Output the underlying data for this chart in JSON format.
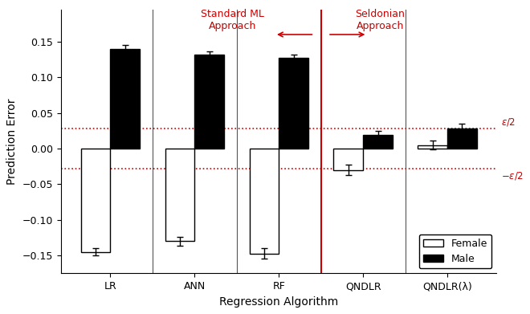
{
  "categories": [
    "LR",
    "ANN",
    "RF",
    "QNDLR",
    "QNDLR(λ)"
  ],
  "female_values": [
    -0.145,
    -0.13,
    -0.147,
    -0.03,
    0.005
  ],
  "male_values": [
    0.14,
    0.132,
    0.127,
    0.019,
    0.028
  ],
  "female_errors": [
    0.005,
    0.006,
    0.007,
    0.007,
    0.006
  ],
  "male_errors": [
    0.005,
    0.004,
    0.005,
    0.006,
    0.007
  ],
  "epsilon_half": 0.028,
  "ylabel": "Prediction Error",
  "xlabel": "Regression Algorithm",
  "ylim": [
    -0.175,
    0.195
  ],
  "yticks": [
    -0.15,
    -0.1,
    -0.05,
    0.0,
    0.05,
    0.1,
    0.15
  ],
  "std_ml_label": "Standard ML\nApproach",
  "seldonian_label": "Seldonian\nApproach",
  "arrow_color": "#cc0000",
  "bar_width": 0.35,
  "female_color": "white",
  "male_color": "black",
  "female_edge": "black",
  "male_edge": "black",
  "epsilon_color": "#cc0000",
  "background_color": "#ffffff",
  "sep_group_color": "#555555",
  "annotation_fontsize": 9.0,
  "axis_fontsize": 10,
  "tick_fontsize": 9
}
